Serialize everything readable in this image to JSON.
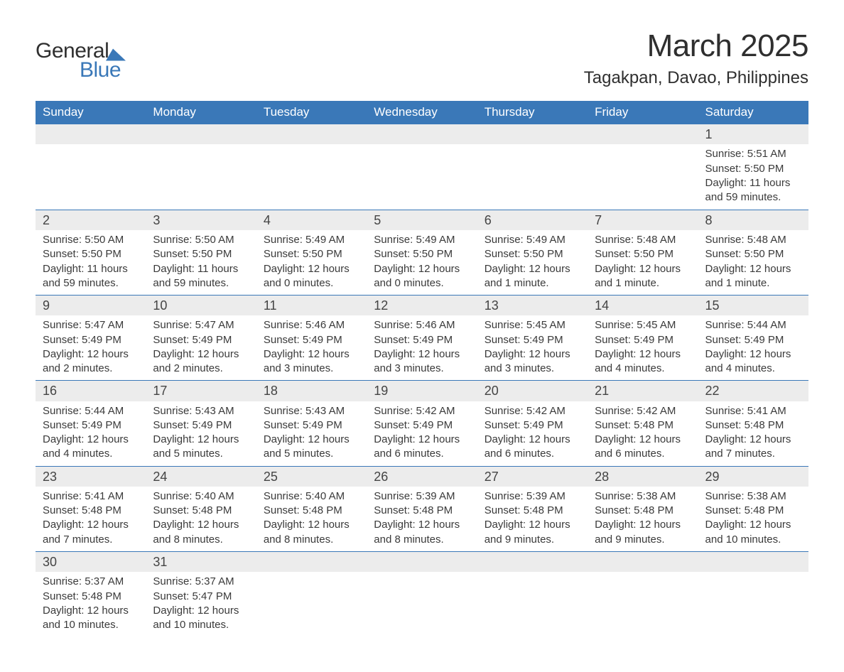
{
  "logo": {
    "word1": "General",
    "word2": "Blue"
  },
  "title": "March 2025",
  "location": "Tagakpan, Davao, Philippines",
  "colors": {
    "header_bg": "#3a78b8",
    "header_text": "#ffffff",
    "daynum_bg": "#ececec",
    "row_border": "#3a78b8",
    "text": "#3a3a3a",
    "page_bg": "#ffffff",
    "logo_accent": "#3a78b8",
    "logo_text": "#2f2f2f"
  },
  "weekdays": [
    "Sunday",
    "Monday",
    "Tuesday",
    "Wednesday",
    "Thursday",
    "Friday",
    "Saturday"
  ],
  "weeks": [
    {
      "tall": true,
      "days": [
        null,
        null,
        null,
        null,
        null,
        null,
        {
          "n": "1",
          "sunrise": "Sunrise: 5:51 AM",
          "sunset": "Sunset: 5:50 PM",
          "day1": "Daylight: 11 hours",
          "day2": "and 59 minutes."
        }
      ]
    },
    {
      "days": [
        {
          "n": "2",
          "sunrise": "Sunrise: 5:50 AM",
          "sunset": "Sunset: 5:50 PM",
          "day1": "Daylight: 11 hours",
          "day2": "and 59 minutes."
        },
        {
          "n": "3",
          "sunrise": "Sunrise: 5:50 AM",
          "sunset": "Sunset: 5:50 PM",
          "day1": "Daylight: 11 hours",
          "day2": "and 59 minutes."
        },
        {
          "n": "4",
          "sunrise": "Sunrise: 5:49 AM",
          "sunset": "Sunset: 5:50 PM",
          "day1": "Daylight: 12 hours",
          "day2": "and 0 minutes."
        },
        {
          "n": "5",
          "sunrise": "Sunrise: 5:49 AM",
          "sunset": "Sunset: 5:50 PM",
          "day1": "Daylight: 12 hours",
          "day2": "and 0 minutes."
        },
        {
          "n": "6",
          "sunrise": "Sunrise: 5:49 AM",
          "sunset": "Sunset: 5:50 PM",
          "day1": "Daylight: 12 hours",
          "day2": "and 1 minute."
        },
        {
          "n": "7",
          "sunrise": "Sunrise: 5:48 AM",
          "sunset": "Sunset: 5:50 PM",
          "day1": "Daylight: 12 hours",
          "day2": "and 1 minute."
        },
        {
          "n": "8",
          "sunrise": "Sunrise: 5:48 AM",
          "sunset": "Sunset: 5:50 PM",
          "day1": "Daylight: 12 hours",
          "day2": "and 1 minute."
        }
      ]
    },
    {
      "days": [
        {
          "n": "9",
          "sunrise": "Sunrise: 5:47 AM",
          "sunset": "Sunset: 5:49 PM",
          "day1": "Daylight: 12 hours",
          "day2": "and 2 minutes."
        },
        {
          "n": "10",
          "sunrise": "Sunrise: 5:47 AM",
          "sunset": "Sunset: 5:49 PM",
          "day1": "Daylight: 12 hours",
          "day2": "and 2 minutes."
        },
        {
          "n": "11",
          "sunrise": "Sunrise: 5:46 AM",
          "sunset": "Sunset: 5:49 PM",
          "day1": "Daylight: 12 hours",
          "day2": "and 3 minutes."
        },
        {
          "n": "12",
          "sunrise": "Sunrise: 5:46 AM",
          "sunset": "Sunset: 5:49 PM",
          "day1": "Daylight: 12 hours",
          "day2": "and 3 minutes."
        },
        {
          "n": "13",
          "sunrise": "Sunrise: 5:45 AM",
          "sunset": "Sunset: 5:49 PM",
          "day1": "Daylight: 12 hours",
          "day2": "and 3 minutes."
        },
        {
          "n": "14",
          "sunrise": "Sunrise: 5:45 AM",
          "sunset": "Sunset: 5:49 PM",
          "day1": "Daylight: 12 hours",
          "day2": "and 4 minutes."
        },
        {
          "n": "15",
          "sunrise": "Sunrise: 5:44 AM",
          "sunset": "Sunset: 5:49 PM",
          "day1": "Daylight: 12 hours",
          "day2": "and 4 minutes."
        }
      ]
    },
    {
      "days": [
        {
          "n": "16",
          "sunrise": "Sunrise: 5:44 AM",
          "sunset": "Sunset: 5:49 PM",
          "day1": "Daylight: 12 hours",
          "day2": "and 4 minutes."
        },
        {
          "n": "17",
          "sunrise": "Sunrise: 5:43 AM",
          "sunset": "Sunset: 5:49 PM",
          "day1": "Daylight: 12 hours",
          "day2": "and 5 minutes."
        },
        {
          "n": "18",
          "sunrise": "Sunrise: 5:43 AM",
          "sunset": "Sunset: 5:49 PM",
          "day1": "Daylight: 12 hours",
          "day2": "and 5 minutes."
        },
        {
          "n": "19",
          "sunrise": "Sunrise: 5:42 AM",
          "sunset": "Sunset: 5:49 PM",
          "day1": "Daylight: 12 hours",
          "day2": "and 6 minutes."
        },
        {
          "n": "20",
          "sunrise": "Sunrise: 5:42 AM",
          "sunset": "Sunset: 5:49 PM",
          "day1": "Daylight: 12 hours",
          "day2": "and 6 minutes."
        },
        {
          "n": "21",
          "sunrise": "Sunrise: 5:42 AM",
          "sunset": "Sunset: 5:48 PM",
          "day1": "Daylight: 12 hours",
          "day2": "and 6 minutes."
        },
        {
          "n": "22",
          "sunrise": "Sunrise: 5:41 AM",
          "sunset": "Sunset: 5:48 PM",
          "day1": "Daylight: 12 hours",
          "day2": "and 7 minutes."
        }
      ]
    },
    {
      "days": [
        {
          "n": "23",
          "sunrise": "Sunrise: 5:41 AM",
          "sunset": "Sunset: 5:48 PM",
          "day1": "Daylight: 12 hours",
          "day2": "and 7 minutes."
        },
        {
          "n": "24",
          "sunrise": "Sunrise: 5:40 AM",
          "sunset": "Sunset: 5:48 PM",
          "day1": "Daylight: 12 hours",
          "day2": "and 8 minutes."
        },
        {
          "n": "25",
          "sunrise": "Sunrise: 5:40 AM",
          "sunset": "Sunset: 5:48 PM",
          "day1": "Daylight: 12 hours",
          "day2": "and 8 minutes."
        },
        {
          "n": "26",
          "sunrise": "Sunrise: 5:39 AM",
          "sunset": "Sunset: 5:48 PM",
          "day1": "Daylight: 12 hours",
          "day2": "and 8 minutes."
        },
        {
          "n": "27",
          "sunrise": "Sunrise: 5:39 AM",
          "sunset": "Sunset: 5:48 PM",
          "day1": "Daylight: 12 hours",
          "day2": "and 9 minutes."
        },
        {
          "n": "28",
          "sunrise": "Sunrise: 5:38 AM",
          "sunset": "Sunset: 5:48 PM",
          "day1": "Daylight: 12 hours",
          "day2": "and 9 minutes."
        },
        {
          "n": "29",
          "sunrise": "Sunrise: 5:38 AM",
          "sunset": "Sunset: 5:48 PM",
          "day1": "Daylight: 12 hours",
          "day2": "and 10 minutes."
        }
      ]
    },
    {
      "days": [
        {
          "n": "30",
          "sunrise": "Sunrise: 5:37 AM",
          "sunset": "Sunset: 5:48 PM",
          "day1": "Daylight: 12 hours",
          "day2": "and 10 minutes."
        },
        {
          "n": "31",
          "sunrise": "Sunrise: 5:37 AM",
          "sunset": "Sunset: 5:47 PM",
          "day1": "Daylight: 12 hours",
          "day2": "and 10 minutes."
        },
        null,
        null,
        null,
        null,
        null
      ]
    }
  ]
}
